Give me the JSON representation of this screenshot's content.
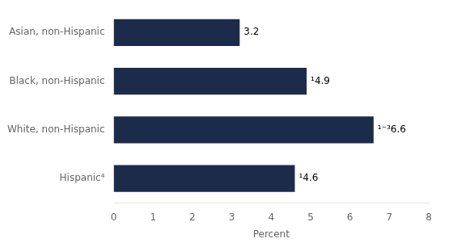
{
  "chart_data": {
    "type": "bar",
    "orientation": "horizontal",
    "categories": [
      "Asian, non-Hispanic",
      "Black, non-Hispanic",
      "White, non-Hispanic",
      "Hispanic⁴"
    ],
    "values": [
      3.2,
      4.9,
      6.6,
      4.6
    ],
    "value_labels": [
      "3.2",
      "¹4.9",
      "¹⁻³6.6",
      "¹4.6"
    ],
    "data_labels": true,
    "color": "#1c2b4a",
    "xlabel": "Percent",
    "xlim": [
      0,
      8
    ],
    "xticks": [
      0,
      1,
      2,
      3,
      4,
      5,
      6,
      7,
      8
    ],
    "grid": false
  }
}
